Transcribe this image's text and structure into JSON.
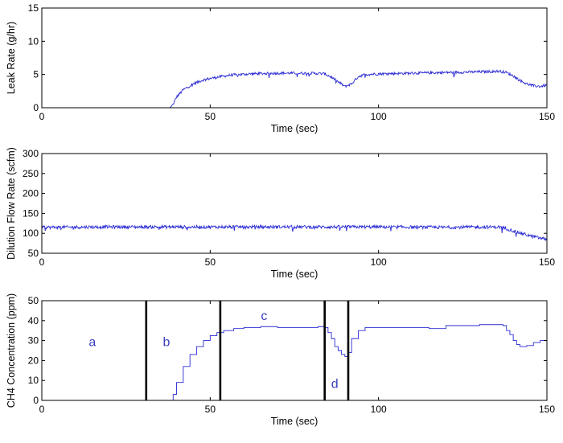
{
  "colors": {
    "series": "#2a2ad4",
    "axes": "#000000",
    "region_line": "#000000",
    "region_text": "#3a3fbf",
    "background": "#ffffff"
  },
  "chart_data": [
    {
      "type": "line",
      "xlabel": "Time (sec)",
      "ylabel": "Leak Rate (g/hr)",
      "xlim": [
        0,
        150
      ],
      "ylim": [
        0,
        15
      ],
      "xticks": [
        0,
        50,
        100,
        150
      ],
      "yticks": [
        0,
        5,
        10,
        15
      ],
      "grid": false,
      "series": [
        {
          "style": "noisy-line",
          "x": [
            0,
            38,
            39,
            40,
            42,
            45,
            48,
            52,
            56,
            62,
            70,
            80,
            84,
            86,
            88,
            90,
            92,
            94,
            96,
            100,
            110,
            120,
            130,
            136,
            138,
            140,
            142,
            144,
            146,
            148,
            150
          ],
          "y": [
            0,
            0,
            0.5,
            1.6,
            2.7,
            3.6,
            4.2,
            4.6,
            4.9,
            5.1,
            5.2,
            5.2,
            5.1,
            4.6,
            3.9,
            3.2,
            3.6,
            4.7,
            5.0,
            5.1,
            5.2,
            5.3,
            5.4,
            5.5,
            5.3,
            4.8,
            4.1,
            3.6,
            3.3,
            3.2,
            3.4
          ],
          "noise": 0.2
        }
      ]
    },
    {
      "type": "line",
      "xlabel": "Time (sec)",
      "ylabel": "Dilution Flow Rate (scfm)",
      "xlim": [
        0,
        150
      ],
      "ylim": [
        50,
        300
      ],
      "xticks": [
        0,
        50,
        100,
        150
      ],
      "yticks": [
        50,
        100,
        150,
        200,
        250,
        300
      ],
      "grid": false,
      "series": [
        {
          "style": "noisy-line",
          "x": [
            0,
            20,
            40,
            60,
            80,
            100,
            120,
            136,
            138,
            140,
            142,
            144,
            146,
            148,
            150
          ],
          "y": [
            115,
            116,
            116,
            116,
            116,
            116,
            115,
            116,
            112,
            106,
            101,
            96,
            92,
            88,
            85
          ],
          "noise": 4
        }
      ]
    },
    {
      "type": "line",
      "xlabel": "Time (sec)",
      "ylabel": "CH4 Concentration (ppm)",
      "xlim": [
        0,
        150
      ],
      "ylim": [
        0,
        50
      ],
      "xticks": [
        0,
        50,
        100,
        150
      ],
      "yticks": [
        0,
        10,
        20,
        30,
        40,
        50
      ],
      "grid": false,
      "series": [
        {
          "style": "step-line",
          "x": [
            0,
            38,
            39,
            40,
            42,
            44,
            46,
            48,
            50,
            52,
            54,
            57,
            60,
            65,
            70,
            75,
            80,
            82,
            84,
            85,
            86,
            87,
            88,
            89,
            90,
            91,
            92,
            94,
            96,
            100,
            110,
            115,
            120,
            130,
            137,
            138,
            139,
            140,
            141,
            142,
            144,
            146,
            148,
            150
          ],
          "y": [
            0,
            0,
            3,
            9,
            17,
            23,
            27,
            30,
            32.5,
            34,
            35,
            36,
            36.5,
            37,
            36.5,
            36.5,
            36.5,
            37,
            36.5,
            34,
            31,
            27,
            25,
            23,
            22,
            24,
            31,
            35,
            36.5,
            36.5,
            36.5,
            36,
            37.5,
            38,
            37.5,
            35,
            33,
            30,
            28,
            27,
            27.5,
            29,
            30,
            32
          ],
          "noise": 0
        }
      ],
      "regions": {
        "boundaries": [
          31,
          53,
          84,
          91
        ],
        "labels": [
          {
            "text": "a",
            "x": 15,
            "y": 29
          },
          {
            "text": "b",
            "x": 37,
            "y": 29
          },
          {
            "text": "c",
            "x": 66,
            "y": 42
          },
          {
            "text": "d",
            "x": 87,
            "y": 8
          }
        ]
      }
    }
  ]
}
